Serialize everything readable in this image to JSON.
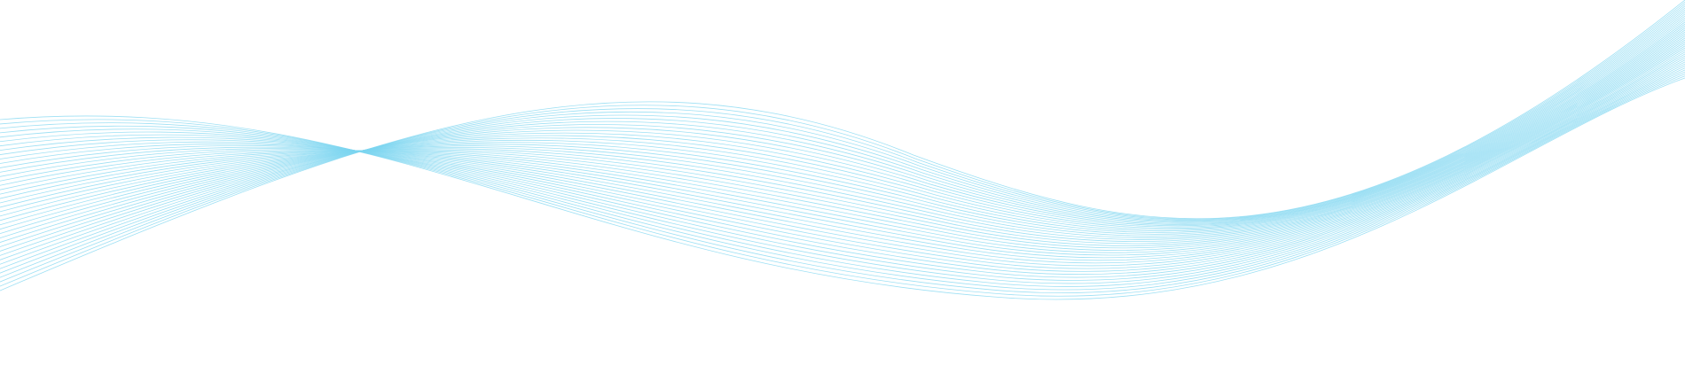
{
  "graphic": {
    "description_type": "decorative-wave-line-art",
    "line_color": "#7dd6f0",
    "line_opacity": 0.75,
    "background_color": "#ffffff",
    "line_count": 40
  }
}
